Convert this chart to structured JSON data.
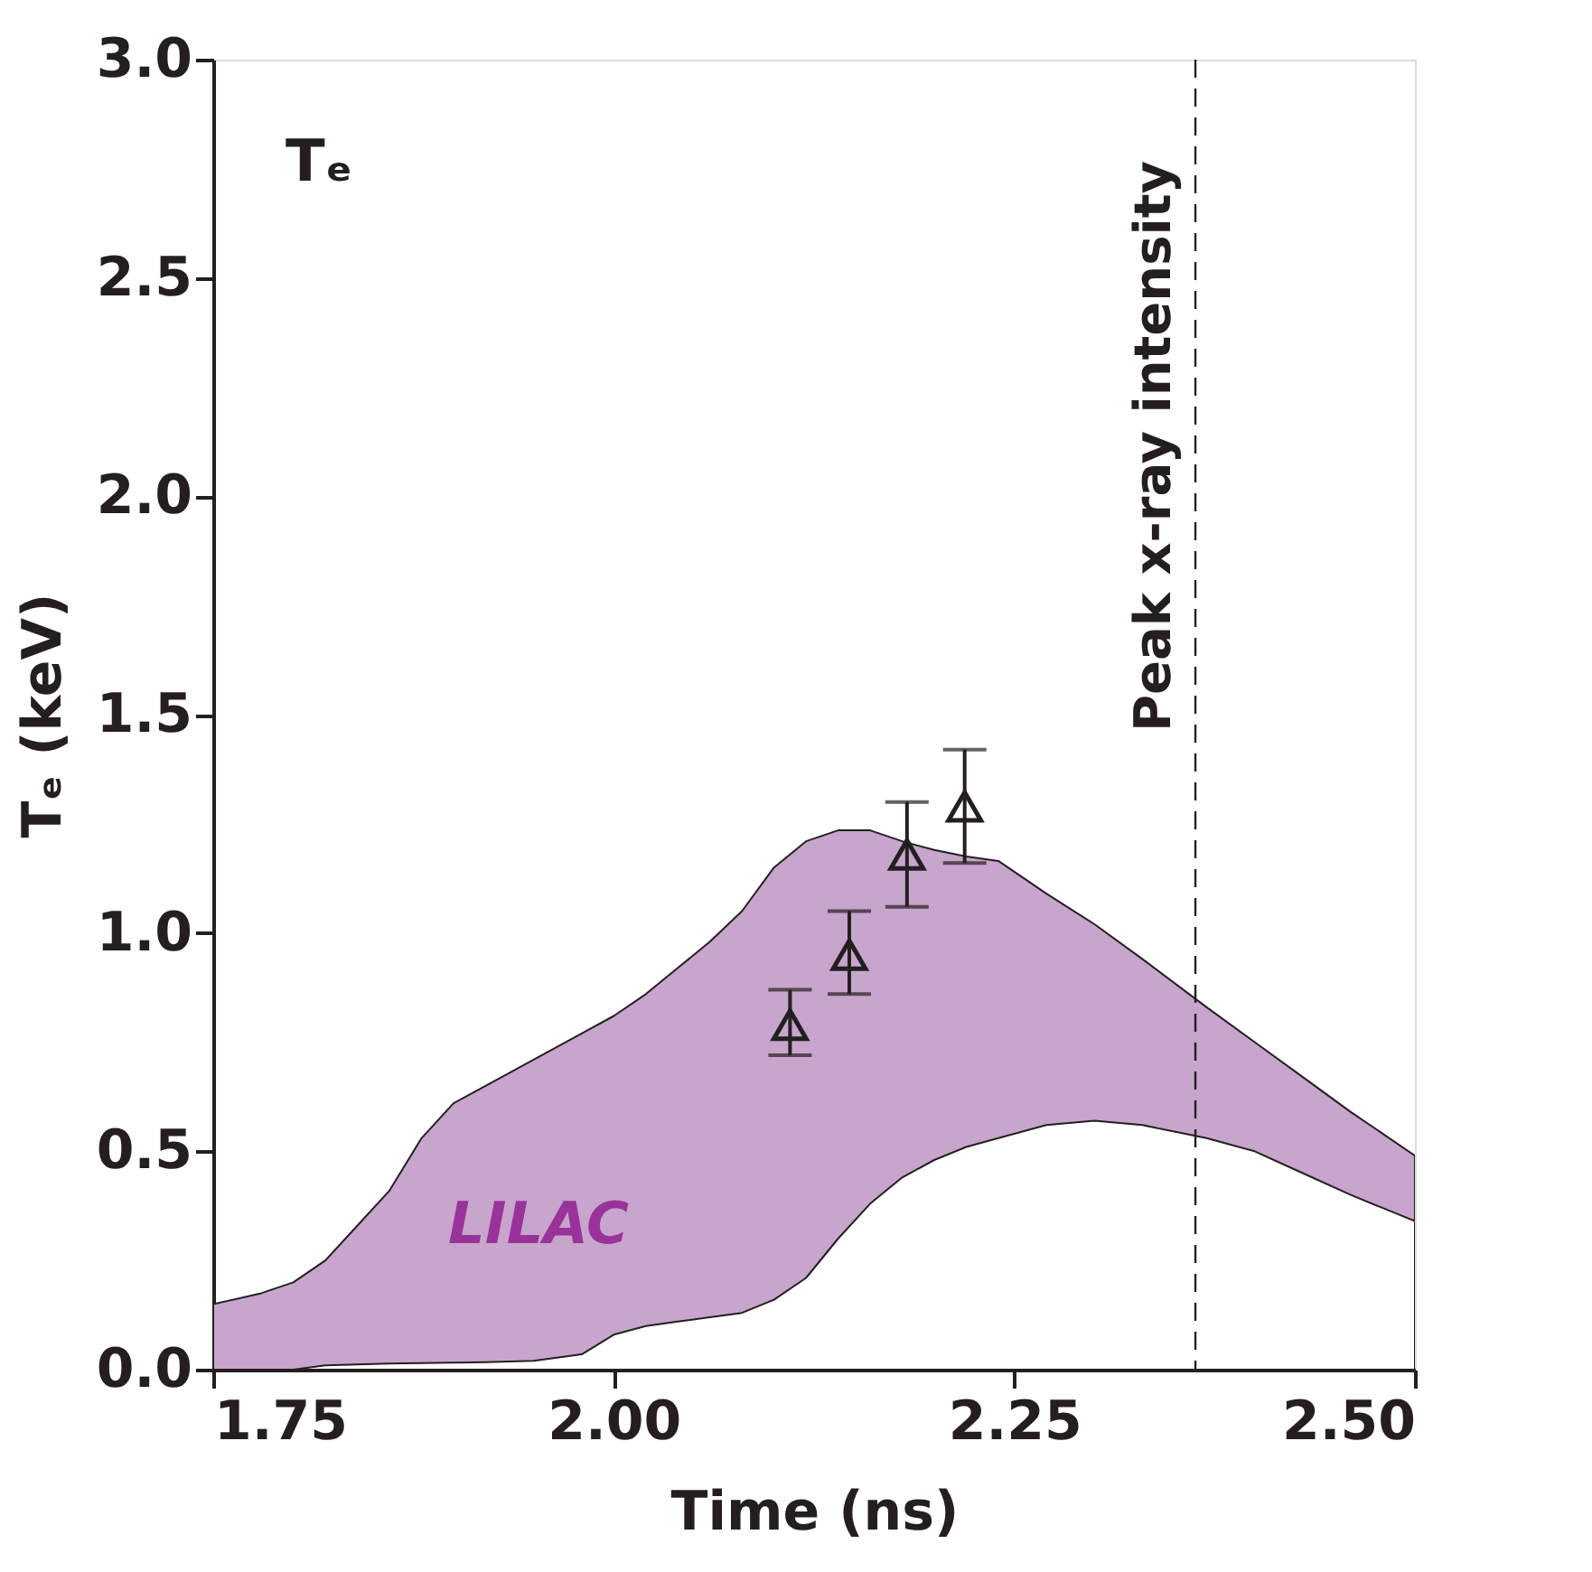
{
  "chart_data": {
    "type": "area",
    "xlabel": "Time (ns)",
    "ylabel": "Tₑ (keV)",
    "xlim": [
      1.75,
      2.5
    ],
    "ylim": [
      0,
      3
    ],
    "xticks": [
      {
        "value": 1.75,
        "label": "1.75"
      },
      {
        "value": 2.0,
        "label": "2.00"
      },
      {
        "value": 2.25,
        "label": "2.25"
      },
      {
        "value": 2.5,
        "label": "2.50"
      }
    ],
    "yticks": [
      {
        "value": 0,
        "label": "0.0"
      },
      {
        "value": 0.5,
        "label": "0.5"
      },
      {
        "value": 1,
        "label": "1.0"
      },
      {
        "value": 1.5,
        "label": "1.5"
      },
      {
        "value": 2,
        "label": "2.0"
      },
      {
        "value": 2.5,
        "label": "2.5"
      },
      {
        "value": 3,
        "label": "3.0"
      }
    ],
    "grid": false,
    "series": [
      {
        "color": "#c8a5cc",
        "x": [
          1.75,
          1.78,
          1.8,
          1.82,
          1.84,
          1.86,
          1.88,
          1.9,
          1.92,
          1.95,
          1.98,
          2.0,
          2.02,
          2.04,
          2.06,
          2.08,
          2.1,
          2.12,
          2.14,
          2.16,
          2.18,
          2.2,
          2.22,
          2.24,
          2.27,
          2.3,
          2.33,
          2.37,
          2.4,
          2.43,
          2.46,
          2.5
        ],
        "values": [
          0.15,
          0.175,
          0.2,
          0.25,
          0.33,
          0.41,
          0.53,
          0.61,
          0.65,
          0.71,
          0.77,
          0.81,
          0.86,
          0.92,
          0.98,
          1.05,
          1.15,
          1.21,
          1.235,
          1.235,
          1.21,
          1.19,
          1.175,
          1.165,
          1.09,
          1.02,
          0.94,
          0.83,
          0.75,
          0.67,
          0.59,
          0.49
        ]
      },
      {
        "color": "#ffffff",
        "x": [
          1.75,
          1.78,
          1.8,
          1.82,
          1.84,
          1.86,
          1.88,
          1.9,
          1.92,
          1.95,
          1.98,
          2.0,
          2.02,
          2.04,
          2.06,
          2.08,
          2.1,
          2.12,
          2.14,
          2.16,
          2.18,
          2.2,
          2.22,
          2.24,
          2.27,
          2.3,
          2.33,
          2.37,
          2.4,
          2.43,
          2.46,
          2.5
        ],
        "values": [
          0,
          0,
          0,
          0.01,
          0.012,
          0.014,
          0.015,
          0.016,
          0.017,
          0.02,
          0.035,
          0.08,
          0.1,
          0.11,
          0.12,
          0.13,
          0.16,
          0.21,
          0.3,
          0.38,
          0.44,
          0.48,
          0.51,
          0.53,
          0.56,
          0.57,
          0.56,
          0.53,
          0.5,
          0.45,
          0.4,
          0.34
        ]
      },
      {
        "type": "scatter",
        "color": "#231f20",
        "marker": "triangle",
        "x": [
          2.11,
          2.147,
          2.183,
          2.219
        ],
        "values": [
          0.79,
          0.95,
          1.18,
          1.29
        ],
        "errors": [
          [
            0.72,
            0.87
          ],
          [
            0.86,
            1.05
          ],
          [
            1.06,
            1.3
          ],
          [
            1.16,
            1.42
          ]
        ]
      }
    ],
    "ref_lines": [
      {
        "axis": "x",
        "value": 2.363,
        "label": "Peak x-ray intensity",
        "color": "#231f20",
        "line_style": "dashed"
      }
    ],
    "annotations": [
      "Tₑ",
      "LILAC"
    ]
  }
}
